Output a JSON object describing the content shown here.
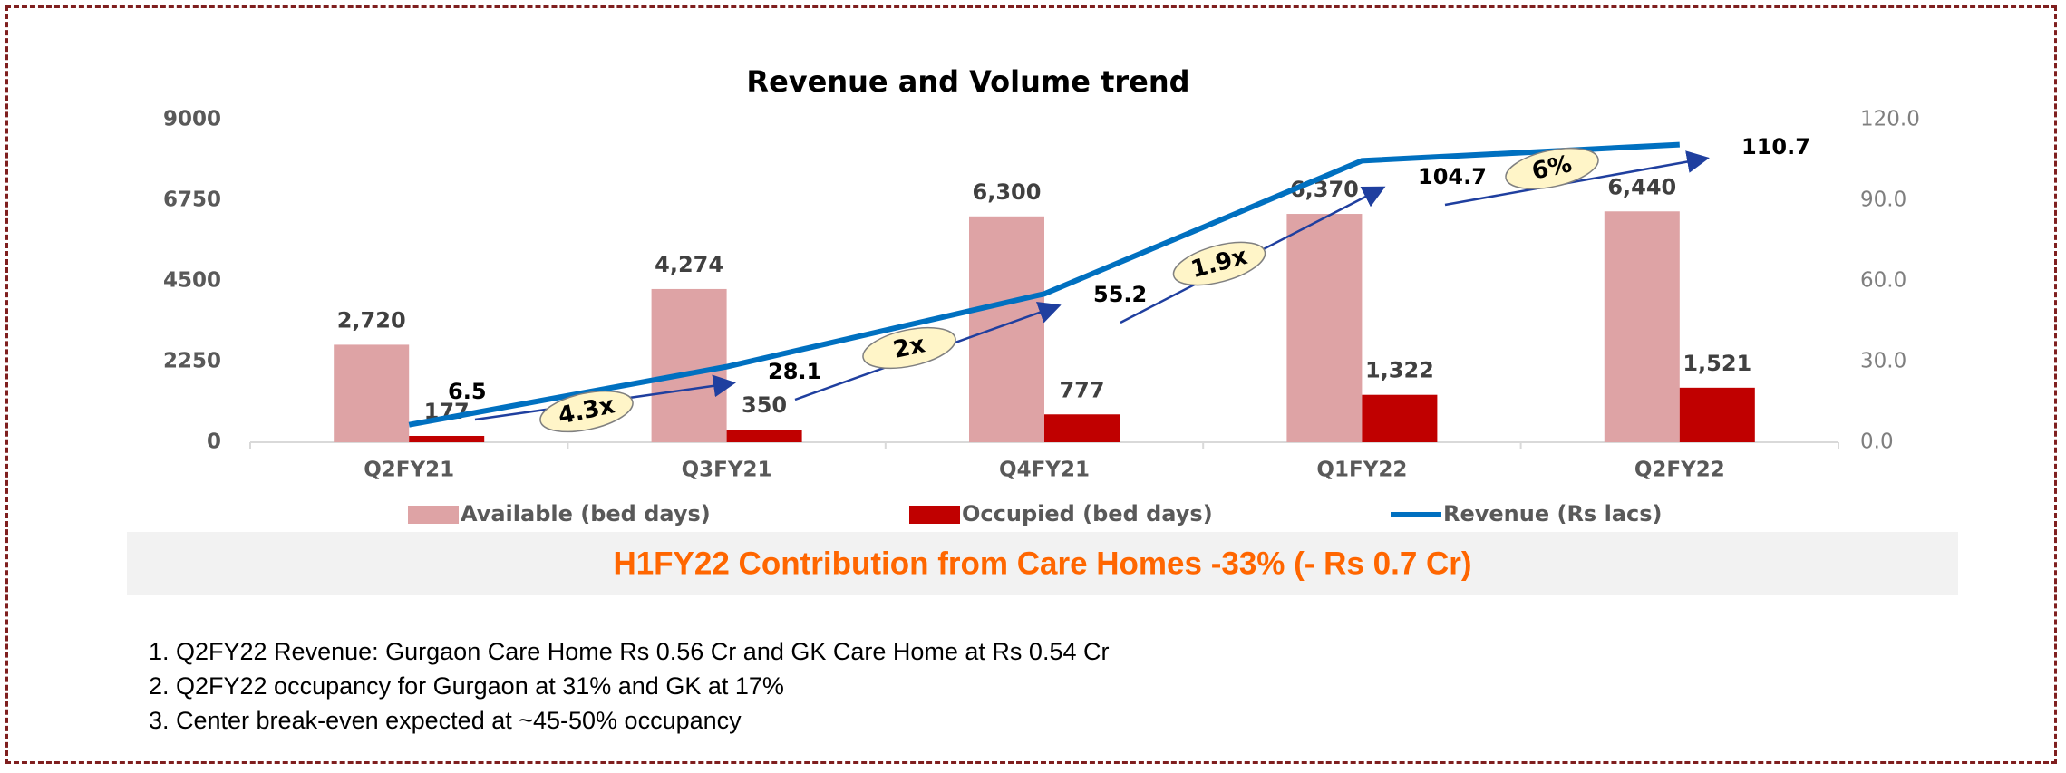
{
  "chart_data": {
    "type": "bar",
    "title": "Revenue and Volume trend",
    "categories": [
      "Q2FY21",
      "Q3FY21",
      "Q4FY21",
      "Q1FY22",
      "Q2FY22"
    ],
    "series": [
      {
        "name": "Available (bed days)",
        "color": "#dea3a5",
        "type": "bar",
        "values": [
          2720,
          4274,
          6300,
          6370,
          6440
        ],
        "value_labels": [
          "2,720",
          "4,274",
          "6,300",
          "6,370",
          "6,440"
        ]
      },
      {
        "name": "Occupied (bed days)",
        "color": "#c00000",
        "type": "bar",
        "values": [
          177,
          350,
          777,
          1322,
          1521
        ],
        "value_labels": [
          "177",
          "350",
          "777",
          "1,322",
          "1,521"
        ]
      },
      {
        "name": "Revenue (Rs lacs)",
        "color": "#0070c0",
        "type": "line",
        "axis": "y2",
        "values": [
          6.5,
          28.1,
          55.2,
          104.7,
          110.7
        ]
      }
    ],
    "ylim": [
      0,
      9000
    ],
    "yticks": [
      0,
      2250,
      4500,
      6750,
      9000
    ],
    "y2lim": [
      0,
      120
    ],
    "y2ticks": [
      {
        "value": 0,
        "label": "0.0"
      },
      {
        "value": 30,
        "label": "30.0"
      },
      {
        "value": 60,
        "label": "60.0"
      },
      {
        "value": 90,
        "label": "90.0"
      },
      {
        "value": 120,
        "label": "120.0"
      }
    ],
    "annotations": [
      "4.3x",
      "2x",
      "1.9x",
      "6%"
    ],
    "legend": "bottom"
  },
  "banner": "H1FY22 Contribution from Care Homes -33% (- Rs 0.7 Cr)",
  "notes": [
    "Q2FY22 Revenue: Gurgaon Care Home Rs 0.56 Cr and GK Care Home at Rs 0.54 Cr",
    "Q2FY22 occupancy for Gurgaon at 31% and GK at 17%",
    "Center break-even expected at ~45-50% occupancy"
  ]
}
